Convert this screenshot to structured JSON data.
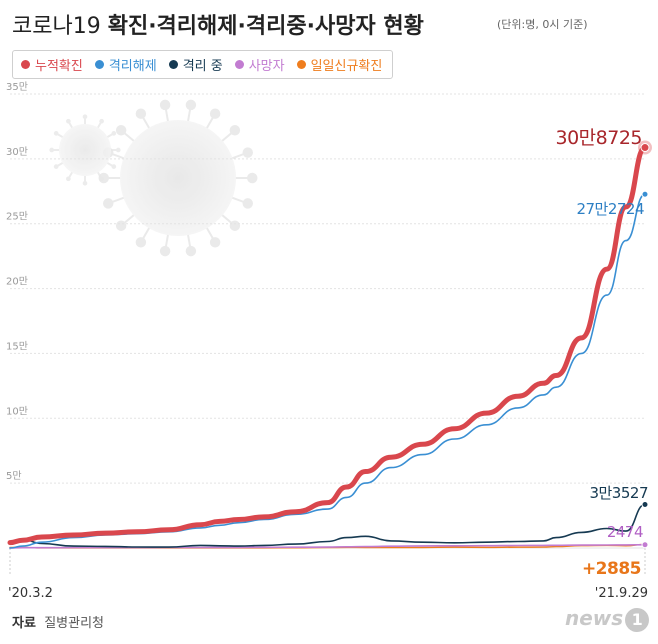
{
  "header": {
    "title_light": "코로나19 ",
    "title_bold": "확진·격리해제·격리중·사망자 현황",
    "unit": "(단위:명, 0시 기준)"
  },
  "legend": [
    {
      "label": "누적확진",
      "color": "#d9474d"
    },
    {
      "label": "격리해제",
      "color": "#3a8fd3"
    },
    {
      "label": "격리 중",
      "color": "#163a52"
    },
    {
      "label": "사망자",
      "color": "#c27cd1"
    },
    {
      "label": "일일신규확진",
      "color": "#ef7d1e"
    }
  ],
  "source": {
    "label": "자료",
    "text": "질병관리청"
  },
  "logo": {
    "text": "news",
    "mark": "1"
  },
  "chart_data": {
    "type": "line",
    "y_ticks": [
      {
        "value": 0,
        "label": ""
      },
      {
        "value": 50000,
        "label": "5만"
      },
      {
        "value": 100000,
        "label": "10만"
      },
      {
        "value": 150000,
        "label": "15만"
      },
      {
        "value": 200000,
        "label": "20만"
      },
      {
        "value": 250000,
        "label": "25만"
      },
      {
        "value": 300000,
        "label": "30만"
      },
      {
        "value": 350000,
        "label": "35만"
      }
    ],
    "ylim": [
      0,
      350000
    ],
    "grid": true,
    "x_start_label": "'20.3.2",
    "x_end_label": "'21.9.29",
    "t": [
      0,
      0.02,
      0.05,
      0.1,
      0.15,
      0.2,
      0.25,
      0.3,
      0.33,
      0.36,
      0.4,
      0.45,
      0.5,
      0.53,
      0.56,
      0.6,
      0.65,
      0.7,
      0.75,
      0.8,
      0.84,
      0.86,
      0.9,
      0.94,
      0.97,
      1.0
    ],
    "series": [
      {
        "name": "누적확진",
        "color": "#d9474d",
        "width": 5,
        "values": [
          4200,
          6000,
          8500,
          10000,
          11500,
          12500,
          14000,
          18000,
          20500,
          22000,
          24000,
          28000,
          35000,
          47000,
          59000,
          70000,
          80000,
          92000,
          104000,
          117000,
          127000,
          133000,
          162000,
          215000,
          263000,
          308725
        ],
        "end_label": "30만8725",
        "end_color": "#a8262b"
      },
      {
        "name": "격리해제",
        "color": "#3a8fd3",
        "width": 1.6,
        "values": [
          30,
          1500,
          4500,
          8000,
          10000,
          11000,
          12500,
          15500,
          17500,
          19500,
          22000,
          26000,
          30000,
          39000,
          50000,
          62000,
          72000,
          84000,
          95000,
          108000,
          118000,
          124000,
          150000,
          195000,
          237000,
          272724
        ],
        "end_label": "27만2724",
        "end_color": "#2d7fc4"
      },
      {
        "name": "격리 중",
        "color": "#163a52",
        "width": 1.6,
        "values": [
          4000,
          6500,
          3500,
          1500,
          1200,
          800,
          700,
          2000,
          1700,
          1500,
          2000,
          3000,
          5000,
          8000,
          9000,
          5500,
          4500,
          4000,
          4500,
          5000,
          5500,
          8000,
          12000,
          15000,
          13000,
          33527
        ],
        "end_label": "3만3527",
        "end_color": "#163a52"
      },
      {
        "name": "사망자",
        "color": "#c27cd1",
        "width": 1.6,
        "values": [
          20,
          200,
          250,
          280,
          300,
          320,
          350,
          400,
          430,
          470,
          520,
          600,
          700,
          900,
          1100,
          1400,
          1600,
          1700,
          1800,
          1900,
          2000,
          2050,
          2200,
          2300,
          2400,
          2474
        ],
        "end_label": "2474",
        "end_color": "#b05fc4"
      },
      {
        "name": "일일신규확진",
        "color": "#ef7d1e",
        "width": 1.4,
        "values": [
          400,
          500,
          100,
          60,
          50,
          50,
          40,
          100,
          80,
          70,
          80,
          120,
          300,
          450,
          400,
          300,
          400,
          600,
          500,
          600,
          700,
          1100,
          1800,
          2000,
          1700,
          2885
        ],
        "end_label": "+2885",
        "end_color": "#e8761a"
      }
    ]
  }
}
